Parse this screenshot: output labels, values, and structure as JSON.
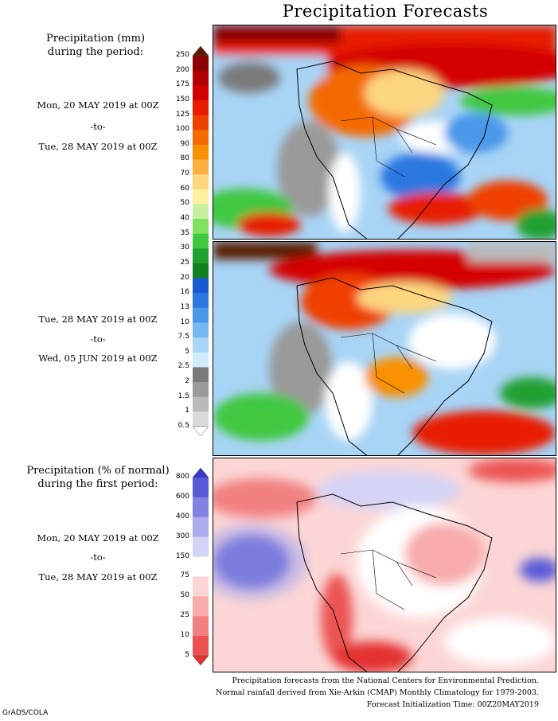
{
  "title": "Precipitation Forecasts",
  "panel1": {
    "heading_line1": "Precipitation (mm)",
    "heading_line2": "during the period:",
    "start": "Mon, 20 MAY 2019 at 00Z",
    "to": "-to-",
    "end": "Tue, 28 MAY 2019 at 00Z"
  },
  "panel2": {
    "start": "Tue, 28 MAY 2019 at 00Z",
    "to": "-to-",
    "end": "Wed, 05 JUN 2019 at 00Z"
  },
  "panel3": {
    "heading_line1": "Precipitation (% of normal)",
    "heading_line2": "during the first period:",
    "start": "Mon, 20 MAY 2019 at 00Z",
    "to": "-to-",
    "end": "Tue, 28 MAY 2019 at 00Z"
  },
  "colorbar_mm": {
    "labels": [
      "250",
      "200",
      "175",
      "150",
      "125",
      "100",
      "90",
      "80",
      "70",
      "60",
      "50",
      "40",
      "35",
      "30",
      "25",
      "20",
      "16",
      "13",
      "10",
      "7.5",
      "5",
      "2.5",
      "2",
      "1.5",
      "1",
      "0.5"
    ],
    "colors": [
      "#5a1a00",
      "#8b0000",
      "#b00000",
      "#d40000",
      "#e81a00",
      "#f04000",
      "#f46a00",
      "#f89000",
      "#fbb040",
      "#fdd680",
      "#fff0a0",
      "#c8f0a0",
      "#80e060",
      "#40c840",
      "#20a030",
      "#108020",
      "#1a5ad0",
      "#2a78e0",
      "#4a98ea",
      "#78b8f0",
      "#a8d4f6",
      "#d0ecfc",
      "#7a7a7a",
      "#9a9a9a",
      "#bababa",
      "#dadada",
      "#ffffff"
    ]
  },
  "colorbar_pct": {
    "labels": [
      "800",
      "600",
      "400",
      "300",
      "150",
      "75",
      "50",
      "25",
      "10",
      "5"
    ],
    "colors": [
      "#3838c8",
      "#5a5ad8",
      "#8282e2",
      "#acacec",
      "#d4d4f6",
      "#ffffff",
      "#fcd6d6",
      "#f8acac",
      "#f28080",
      "#ec5252",
      "#e43030"
    ]
  },
  "footer": {
    "line1": "Precipitation forecasts from the National Centers for Environmental Prediction.",
    "line2": "Normal rainfall derived from Xie-Arkin (CMAP) Monthly Climatology for 1979-2003.",
    "line3": "Forecast Initialization Time: 00Z20MAY2019"
  },
  "credit": "GrADS/COLA"
}
